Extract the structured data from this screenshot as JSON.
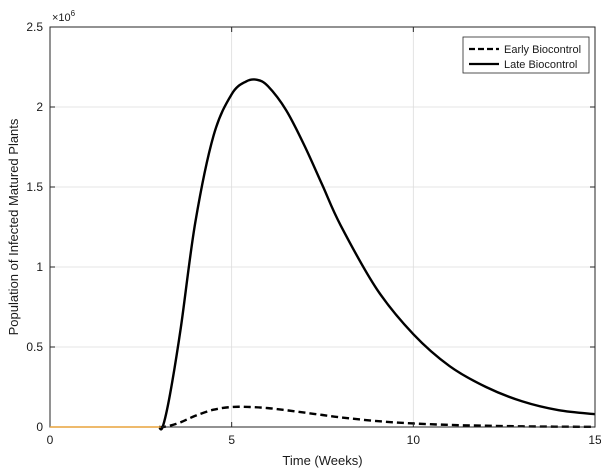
{
  "chart_data": {
    "type": "line",
    "title": "",
    "xlabel": "Time (Weeks)",
    "ylabel": "Population of Infected Matured Plants",
    "xlim": [
      0,
      15
    ],
    "ylim": [
      0,
      2500000
    ],
    "y_exponent_label": "×10",
    "y_exponent_power": "6",
    "x_ticks": [
      0,
      5,
      10,
      15
    ],
    "x_tick_labels": [
      "0",
      "5",
      "10",
      "15"
    ],
    "y_ticks": [
      0,
      500000,
      1000000,
      1500000,
      2000000,
      2500000
    ],
    "y_tick_labels": [
      "0",
      "0.5",
      "1",
      "1.5",
      "2",
      "2.5"
    ],
    "grid": true,
    "legend_position": "top-right",
    "baseline_color": "#e8a33c",
    "series": [
      {
        "name": "Early Biocontrol",
        "style": "dashed",
        "color": "#000000",
        "x": [
          0,
          3.0,
          3.1,
          3.3,
          3.6,
          4.0,
          4.5,
          5.0,
          5.5,
          6.0,
          6.5,
          7.0,
          7.5,
          8.0,
          9.0,
          10.0,
          11.0,
          12.0,
          13.0,
          14.0,
          15.0
        ],
        "y": [
          0,
          0,
          0,
          8000,
          30000,
          70000,
          108000,
          125000,
          125000,
          118000,
          105000,
          90000,
          75000,
          60000,
          37000,
          22000,
          13000,
          8000,
          4000,
          2000,
          1000
        ]
      },
      {
        "name": "Late Biocontrol",
        "style": "solid",
        "color": "#000000",
        "x": [
          0,
          3.0,
          3.1,
          3.3,
          3.6,
          4.0,
          4.5,
          5.0,
          5.4,
          5.7,
          6.0,
          6.5,
          7.0,
          7.5,
          8.0,
          9.0,
          10.0,
          11.0,
          12.0,
          13.0,
          14.0,
          15.0
        ],
        "y": [
          0,
          0,
          0,
          200000,
          620000,
          1280000,
          1820000,
          2080000,
          2160000,
          2170000,
          2130000,
          1980000,
          1760000,
          1510000,
          1260000,
          860000,
          580000,
          380000,
          250000,
          160000,
          105000,
          80000
        ]
      }
    ]
  }
}
